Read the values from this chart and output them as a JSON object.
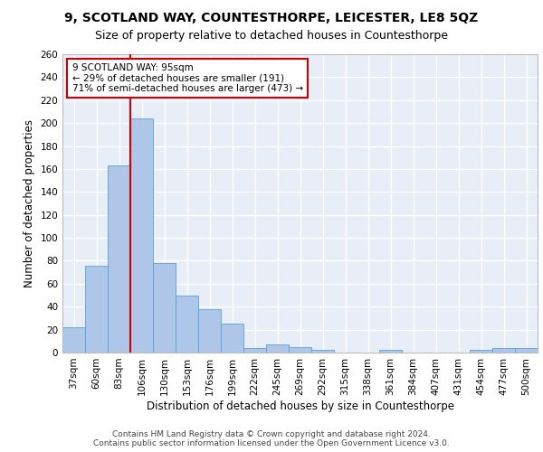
{
  "title1": "9, SCOTLAND WAY, COUNTESTHORPE, LEICESTER, LE8 5QZ",
  "title2": "Size of property relative to detached houses in Countesthorpe",
  "xlabel": "Distribution of detached houses by size in Countesthorpe",
  "ylabel": "Number of detached properties",
  "categories": [
    "37sqm",
    "60sqm",
    "83sqm",
    "106sqm",
    "130sqm",
    "153sqm",
    "176sqm",
    "199sqm",
    "222sqm",
    "245sqm",
    "269sqm",
    "292sqm",
    "315sqm",
    "338sqm",
    "361sqm",
    "384sqm",
    "407sqm",
    "431sqm",
    "454sqm",
    "477sqm",
    "500sqm"
  ],
  "values": [
    22,
    76,
    163,
    204,
    78,
    50,
    38,
    25,
    4,
    7,
    5,
    2,
    0,
    0,
    2,
    0,
    0,
    0,
    2,
    4,
    4
  ],
  "bar_color": "#aec6e8",
  "bar_edgecolor": "#5a9fd4",
  "background_color": "#e8eef8",
  "grid_color": "#ffffff",
  "property_line_x": 2.5,
  "annotation_text": "9 SCOTLAND WAY: 95sqm\n← 29% of detached houses are smaller (191)\n71% of semi-detached houses are larger (473) →",
  "annotation_box_color": "#ffffff",
  "annotation_box_edgecolor": "#cc0000",
  "property_line_color": "#cc0000",
  "ylim": [
    0,
    260
  ],
  "yticks": [
    0,
    20,
    40,
    60,
    80,
    100,
    120,
    140,
    160,
    180,
    200,
    220,
    240,
    260
  ],
  "footer_line1": "Contains HM Land Registry data © Crown copyright and database right 2024.",
  "footer_line2": "Contains public sector information licensed under the Open Government Licence v3.0.",
  "title1_fontsize": 10,
  "title2_fontsize": 9,
  "xlabel_fontsize": 8.5,
  "ylabel_fontsize": 8.5,
  "tick_fontsize": 7.5,
  "annotation_fontsize": 7.5,
  "footer_fontsize": 6.5
}
